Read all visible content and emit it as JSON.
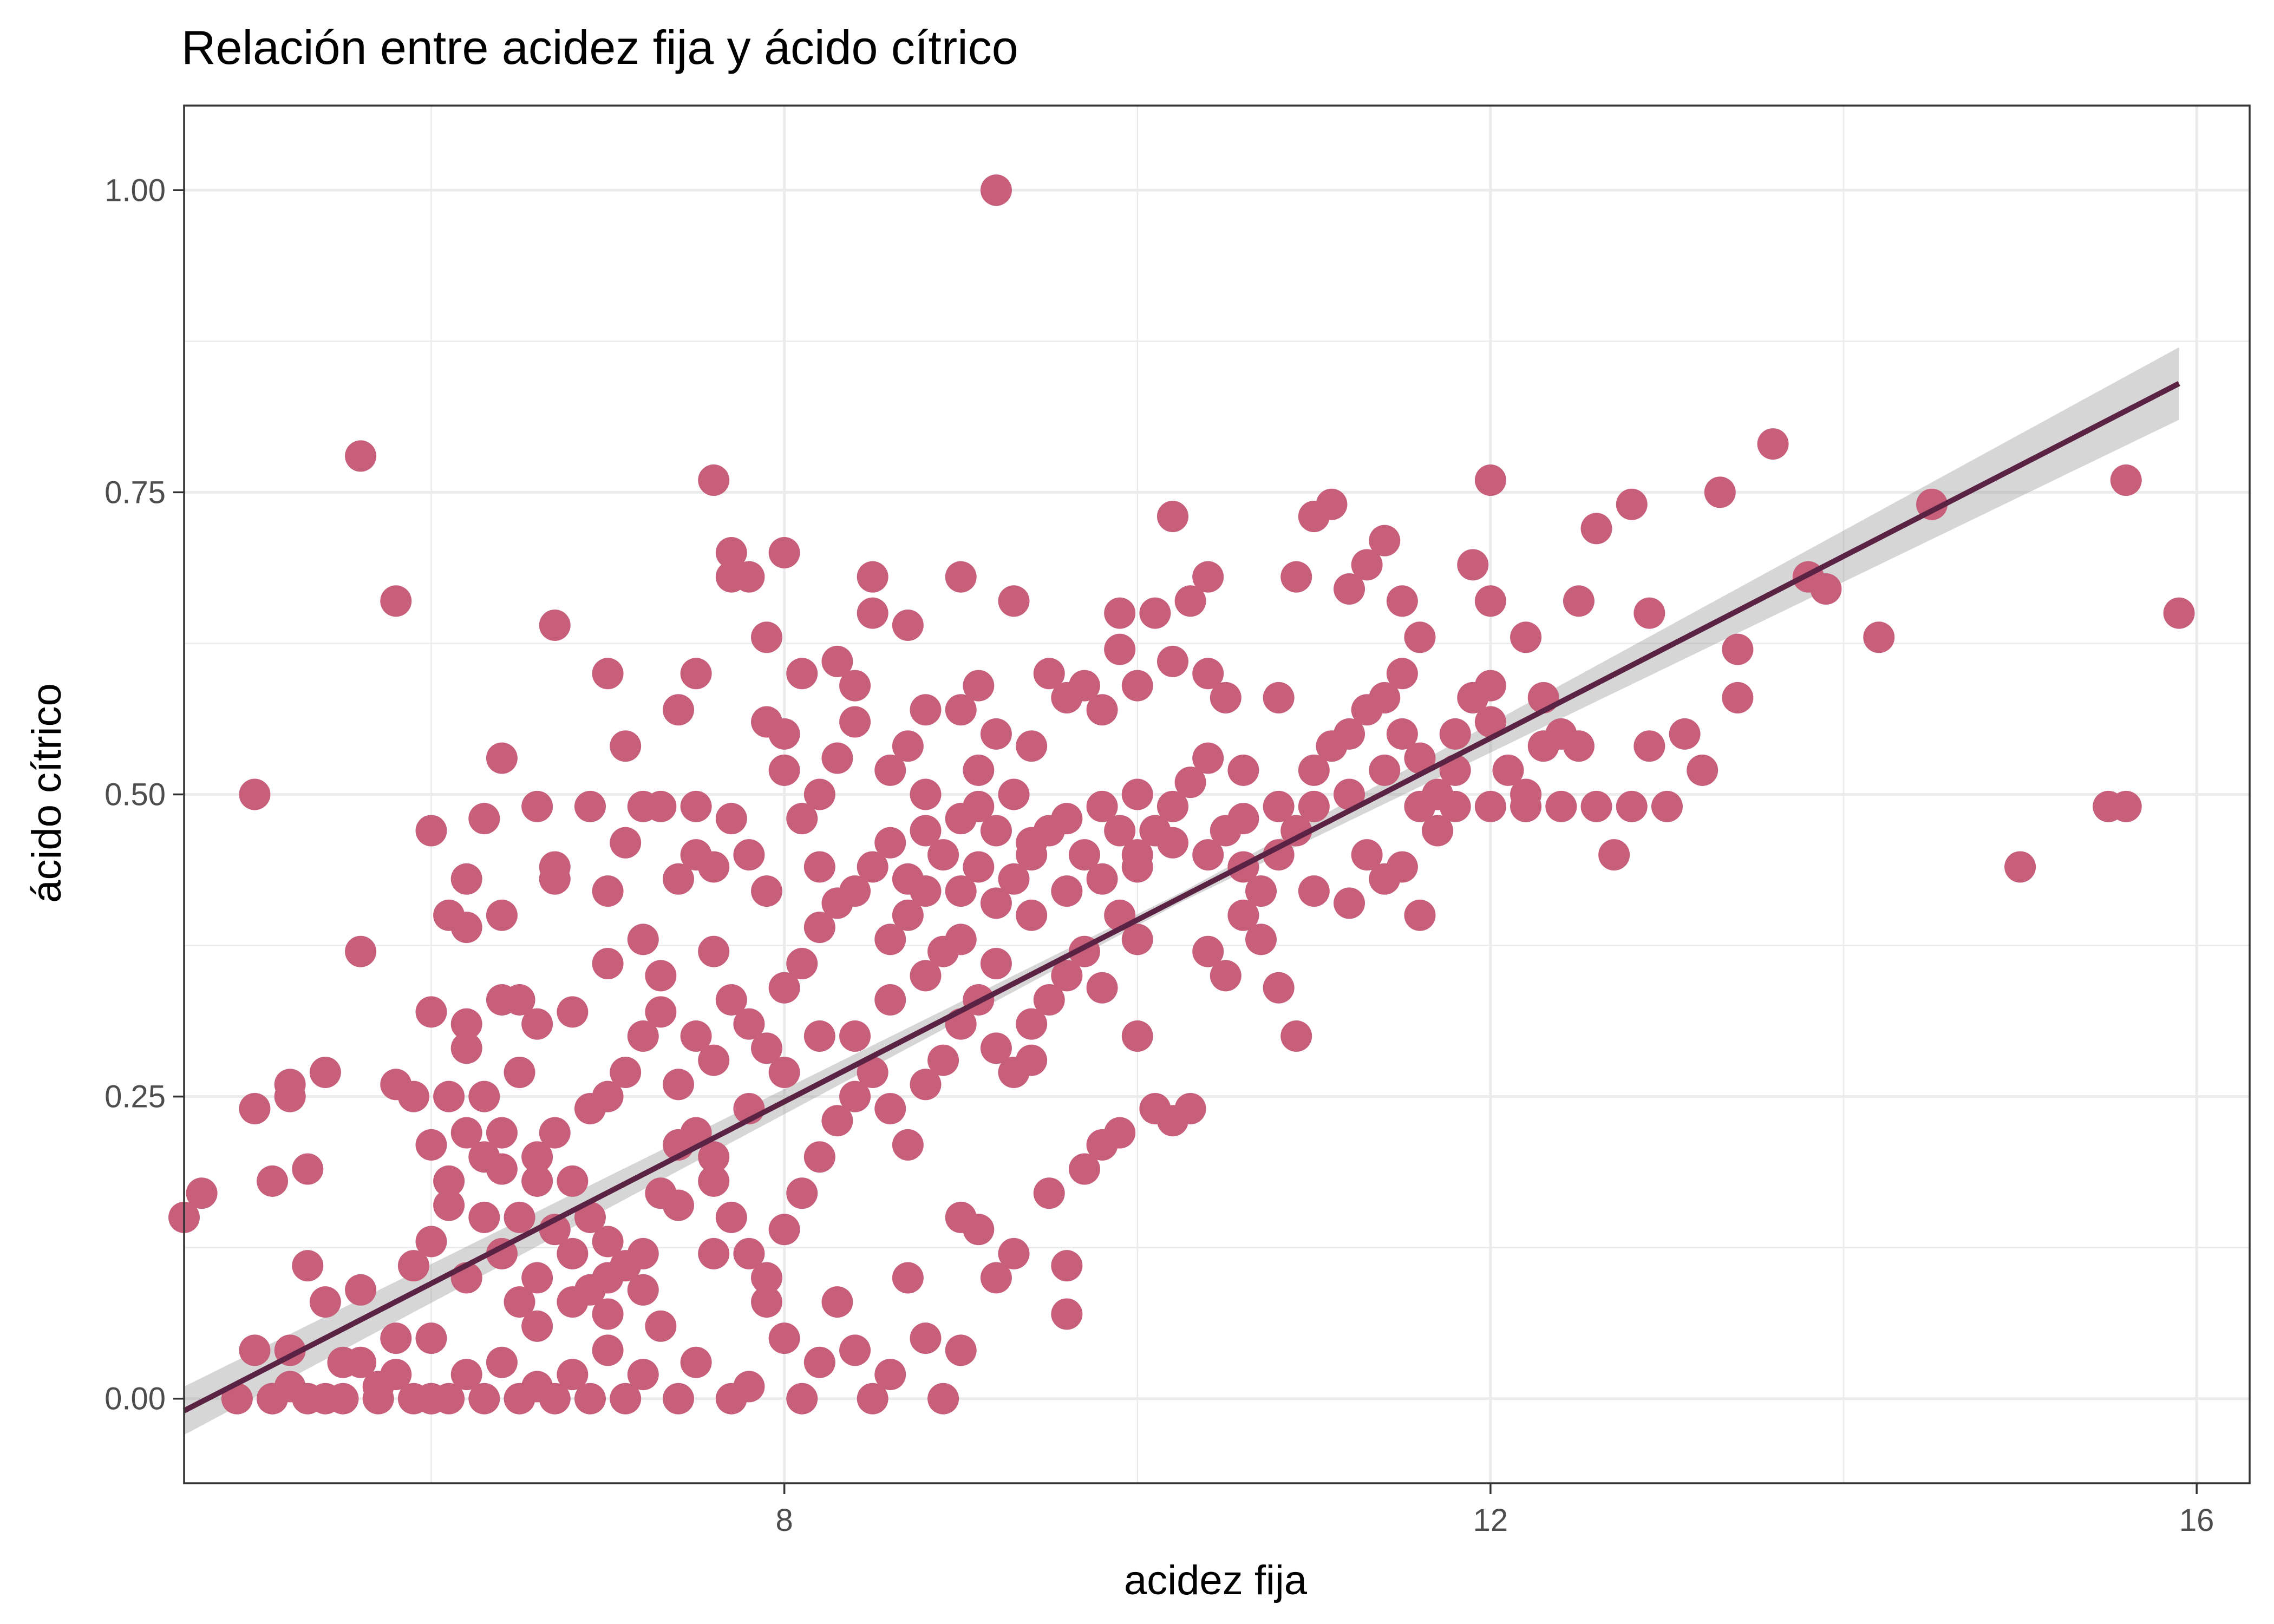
{
  "chart_data": {
    "type": "scatter",
    "title": "Relación entre acidez fija y ácido cítrico",
    "xlabel": "acidez fija",
    "ylabel": "ácido cítrico",
    "xlim": [
      4.6,
      16.3
    ],
    "ylim": [
      -0.07,
      1.07
    ],
    "x_ticks": [
      8,
      12,
      16
    ],
    "x_tick_labels": [
      "8",
      "12",
      "16"
    ],
    "y_ticks": [
      0,
      0.25,
      0.5,
      0.75,
      1.0
    ],
    "y_tick_labels": [
      "0.00",
      "0.25",
      "0.50",
      "0.75",
      "1.00"
    ],
    "grid": true,
    "point_color": "#c75e7a",
    "fit_color": "#5a2243",
    "band_color": "#999999",
    "regression": {
      "type": "linear",
      "x_range": [
        4.6,
        15.9
      ],
      "y_range": [
        -0.01,
        0.84
      ],
      "band_half_width": [
        0.02,
        0.004,
        0.03
      ]
    },
    "points": [
      [
        4.6,
        0.15
      ],
      [
        4.7,
        0.17
      ],
      [
        4.9,
        0
      ],
      [
        5.0,
        0.04
      ],
      [
        5.0,
        0.24
      ],
      [
        5.0,
        0.5
      ],
      [
        5.1,
        0.18
      ],
      [
        5.1,
        0
      ],
      [
        5.2,
        0.04
      ],
      [
        5.2,
        0.25
      ],
      [
        5.2,
        0.26
      ],
      [
        5.3,
        0.19
      ],
      [
        5.3,
        0.11
      ],
      [
        5.4,
        0.27
      ],
      [
        5.4,
        0.08
      ],
      [
        5.4,
        0
      ],
      [
        5.5,
        0.03
      ],
      [
        5.6,
        0.09
      ],
      [
        5.6,
        0.37
      ],
      [
        5.6,
        0.78
      ],
      [
        5.7,
        0
      ],
      [
        5.8,
        0.26
      ],
      [
        5.8,
        0.66
      ],
      [
        5.8,
        0.02
      ],
      [
        5.9,
        0.11
      ],
      [
        5.9,
        0.25
      ],
      [
        6.0,
        0.47
      ],
      [
        6.0,
        0.32
      ],
      [
        6.0,
        0.21
      ],
      [
        6.0,
        0.13
      ],
      [
        6.0,
        0
      ],
      [
        6.1,
        0.4
      ],
      [
        6.1,
        0.25
      ],
      [
        6.1,
        0.16
      ],
      [
        6.2,
        0.43
      ],
      [
        6.2,
        0.39
      ],
      [
        6.2,
        0.31
      ],
      [
        6.2,
        0.29
      ],
      [
        6.3,
        0.48
      ],
      [
        6.3,
        0.2
      ],
      [
        6.3,
        0.15
      ],
      [
        6.4,
        0.53
      ],
      [
        6.4,
        0.4
      ],
      [
        6.4,
        0.33
      ],
      [
        6.4,
        0.22
      ],
      [
        6.5,
        0.33
      ],
      [
        6.5,
        0.27
      ],
      [
        6.6,
        0.31
      ],
      [
        6.6,
        0.49
      ],
      [
        6.6,
        0.18
      ],
      [
        6.7,
        0.64
      ],
      [
        6.7,
        0.44
      ],
      [
        6.7,
        0.43
      ],
      [
        6.8,
        0.32
      ],
      [
        6.9,
        0.24
      ],
      [
        6.9,
        0.49
      ],
      [
        7.0,
        0.6
      ],
      [
        7.0,
        0.42
      ],
      [
        7.0,
        0.36
      ],
      [
        7.1,
        0.54
      ],
      [
        7.1,
        0.46
      ],
      [
        7.2,
        0.49
      ],
      [
        7.2,
        0.38
      ],
      [
        7.3,
        0.49
      ],
      [
        7.3,
        0.35
      ],
      [
        7.4,
        0.57
      ],
      [
        7.4,
        0.43
      ],
      [
        7.5,
        0.6
      ],
      [
        7.5,
        0.49
      ],
      [
        7.5,
        0.45
      ],
      [
        7.6,
        0.76
      ],
      [
        7.6,
        0.44
      ],
      [
        7.6,
        0.37
      ],
      [
        7.7,
        0.68
      ],
      [
        7.7,
        0.7
      ],
      [
        7.7,
        0.48
      ],
      [
        7.8,
        0.68
      ],
      [
        7.8,
        0.45
      ],
      [
        7.9,
        0.56
      ],
      [
        7.9,
        0.63
      ],
      [
        7.9,
        0.42
      ],
      [
        8.0,
        0.7
      ],
      [
        8.0,
        0.55
      ],
      [
        8.0,
        0.52
      ],
      [
        8.1,
        0.6
      ],
      [
        8.1,
        0.48
      ],
      [
        8.2,
        0.5
      ],
      [
        8.2,
        0.44
      ],
      [
        8.3,
        0.61
      ],
      [
        8.3,
        0.53
      ],
      [
        8.4,
        0.59
      ],
      [
        8.4,
        0.56
      ],
      [
        8.5,
        0.68
      ],
      [
        8.5,
        0.65
      ],
      [
        8.6,
        0.52
      ],
      [
        8.7,
        0.64
      ],
      [
        8.7,
        0.54
      ],
      [
        8.8,
        0.57
      ],
      [
        8.8,
        0.5
      ],
      [
        9.0,
        0.68
      ],
      [
        9.0,
        0.57
      ],
      [
        9.1,
        0.59
      ],
      [
        9.1,
        0.52
      ],
      [
        9.2,
        1.0
      ],
      [
        9.2,
        0.55
      ],
      [
        9.3,
        0.66
      ],
      [
        9.4,
        0.54
      ],
      [
        9.5,
        0.6
      ],
      [
        9.6,
        0.58
      ],
      [
        9.7,
        0.59
      ],
      [
        9.8,
        0.57
      ],
      [
        9.9,
        0.62
      ],
      [
        9.9,
        0.65
      ],
      [
        10.0,
        0.59
      ],
      [
        10.0,
        0.5
      ],
      [
        10.1,
        0.65
      ],
      [
        10.2,
        0.73
      ],
      [
        10.2,
        0.61
      ],
      [
        10.3,
        0.66
      ],
      [
        10.4,
        0.68
      ],
      [
        10.4,
        0.6
      ],
      [
        10.5,
        0.58
      ],
      [
        10.6,
        0.52
      ],
      [
        10.8,
        0.58
      ],
      [
        10.9,
        0.68
      ],
      [
        11.0,
        0.73
      ],
      [
        11.1,
        0.74
      ],
      [
        11.2,
        0.67
      ],
      [
        11.3,
        0.69
      ],
      [
        11.4,
        0.71
      ],
      [
        11.5,
        0.66
      ],
      [
        11.5,
        0.6
      ],
      [
        11.6,
        0.63
      ],
      [
        11.8,
        0.55
      ],
      [
        11.9,
        0.69
      ],
      [
        12.0,
        0.76
      ],
      [
        12.0,
        0.66
      ],
      [
        12.0,
        0.59
      ],
      [
        12.2,
        0.63
      ],
      [
        12.3,
        0.58
      ],
      [
        12.5,
        0.66
      ],
      [
        12.6,
        0.72
      ],
      [
        12.8,
        0.74
      ],
      [
        12.9,
        0.65
      ],
      [
        13.1,
        0.55
      ],
      [
        13.2,
        0.52
      ],
      [
        13.3,
        0.75
      ],
      [
        13.4,
        0.58
      ],
      [
        13.4,
        0.62
      ],
      [
        13.6,
        0.79
      ],
      [
        13.8,
        0.68
      ],
      [
        13.9,
        0.67
      ],
      [
        14.2,
        0.63
      ],
      [
        14.5,
        0.74
      ],
      [
        15.0,
        0.44
      ],
      [
        15.5,
        0.49
      ],
      [
        15.6,
        0.49
      ],
      [
        15.6,
        0.76
      ],
      [
        15.9,
        0.65
      ],
      [
        6.0,
        0.05
      ],
      [
        6.2,
        0.1
      ],
      [
        6.4,
        0.12
      ],
      [
        6.6,
        0.06
      ],
      [
        6.8,
        0.08
      ],
      [
        7.0,
        0.1
      ],
      [
        7.2,
        0.12
      ],
      [
        7.4,
        0.16
      ],
      [
        7.6,
        0.2
      ],
      [
        7.8,
        0.24
      ],
      [
        8.0,
        0.27
      ],
      [
        8.2,
        0.3
      ],
      [
        8.4,
        0.3
      ],
      [
        8.6,
        0.33
      ],
      [
        8.8,
        0.35
      ],
      [
        9.0,
        0.38
      ],
      [
        9.2,
        0.36
      ],
      [
        9.4,
        0.4
      ],
      [
        9.6,
        0.42
      ],
      [
        9.8,
        0.43
      ],
      [
        10.0,
        0.44
      ],
      [
        10.2,
        0.46
      ],
      [
        10.4,
        0.45
      ],
      [
        10.6,
        0.48
      ],
      [
        10.8,
        0.49
      ],
      [
        11.0,
        0.49
      ],
      [
        11.2,
        0.5
      ],
      [
        11.4,
        0.52
      ],
      [
        11.6,
        0.49
      ],
      [
        11.8,
        0.49
      ],
      [
        12.0,
        0.49
      ],
      [
        12.2,
        0.49
      ],
      [
        12.4,
        0.49
      ],
      [
        12.6,
        0.49
      ],
      [
        12.8,
        0.49
      ],
      [
        13.0,
        0.49
      ],
      [
        12.7,
        0.45
      ],
      [
        12.9,
        0.54
      ],
      [
        11.5,
        0.44
      ],
      [
        11.6,
        0.4
      ],
      [
        11.7,
        0.47
      ],
      [
        11.3,
        0.45
      ],
      [
        11.4,
        0.43
      ],
      [
        11.2,
        0.41
      ],
      [
        11.0,
        0.42
      ],
      [
        10.9,
        0.3
      ],
      [
        10.8,
        0.34
      ],
      [
        10.7,
        0.38
      ],
      [
        10.6,
        0.4
      ],
      [
        10.5,
        0.35
      ],
      [
        10.4,
        0.37
      ],
      [
        10.3,
        0.24
      ],
      [
        10.2,
        0.23
      ],
      [
        10.1,
        0.24
      ],
      [
        10.0,
        0.38
      ],
      [
        10.0,
        0.3
      ],
      [
        9.9,
        0.22
      ],
      [
        9.8,
        0.21
      ],
      [
        9.7,
        0.19
      ],
      [
        9.6,
        0.07
      ],
      [
        9.6,
        0.11
      ],
      [
        9.5,
        0.17
      ],
      [
        9.4,
        0.28
      ],
      [
        9.3,
        0.12
      ],
      [
        9.2,
        0.1
      ],
      [
        9.1,
        0.14
      ],
      [
        9.0,
        0.04
      ],
      [
        9.0,
        0.15
      ],
      [
        8.9,
        0.0
      ],
      [
        8.8,
        0.05
      ],
      [
        8.7,
        0.1
      ],
      [
        8.6,
        0.02
      ],
      [
        8.5,
        0.0
      ],
      [
        8.4,
        0.04
      ],
      [
        8.3,
        0.08
      ],
      [
        8.2,
        0.03
      ],
      [
        8.1,
        0.0
      ],
      [
        8.0,
        0.05
      ],
      [
        7.9,
        0.08
      ],
      [
        7.8,
        0.01
      ],
      [
        7.7,
        0.0
      ],
      [
        7.6,
        0.12
      ],
      [
        7.5,
        0.03
      ],
      [
        7.4,
        0.0
      ],
      [
        7.3,
        0.06
      ],
      [
        7.2,
        0.02
      ],
      [
        7.1,
        0.0
      ],
      [
        7.0,
        0.04
      ],
      [
        6.9,
        0.0
      ],
      [
        6.8,
        0.02
      ],
      [
        6.7,
        0.0
      ],
      [
        6.6,
        0.01
      ],
      [
        6.5,
        0.0
      ],
      [
        6.4,
        0.03
      ],
      [
        6.3,
        0.0
      ],
      [
        6.2,
        0.02
      ],
      [
        6.1,
        0.0
      ],
      [
        6.0,
        0.0
      ],
      [
        5.9,
        0.0
      ],
      [
        5.8,
        0.05
      ],
      [
        5.7,
        0.01
      ],
      [
        5.6,
        0.03
      ],
      [
        5.5,
        0.0
      ],
      [
        5.3,
        0.0
      ],
      [
        5.2,
        0.01
      ],
      [
        5.1,
        0.0
      ],
      [
        7.5,
        0.3
      ],
      [
        7.6,
        0.28
      ],
      [
        7.7,
        0.33
      ],
      [
        7.8,
        0.31
      ],
      [
        7.9,
        0.29
      ],
      [
        8.0,
        0.34
      ],
      [
        8.1,
        0.36
      ],
      [
        8.2,
        0.39
      ],
      [
        8.3,
        0.41
      ],
      [
        8.4,
        0.42
      ],
      [
        8.5,
        0.44
      ],
      [
        8.6,
        0.46
      ],
      [
        8.7,
        0.43
      ],
      [
        8.8,
        0.47
      ],
      [
        8.9,
        0.45
      ],
      [
        9.0,
        0.48
      ],
      [
        9.1,
        0.49
      ],
      [
        9.2,
        0.47
      ],
      [
        9.3,
        0.5
      ],
      [
        9.4,
        0.46
      ],
      [
        7.0,
        0.25
      ],
      [
        7.1,
        0.27
      ],
      [
        7.2,
        0.3
      ],
      [
        7.3,
        0.32
      ],
      [
        7.4,
        0.26
      ],
      [
        7.5,
        0.22
      ],
      [
        7.6,
        0.18
      ],
      [
        7.7,
        0.15
      ],
      [
        7.8,
        0.12
      ],
      [
        7.9,
        0.1
      ],
      [
        8.0,
        0.14
      ],
      [
        8.1,
        0.17
      ],
      [
        8.2,
        0.2
      ],
      [
        8.3,
        0.23
      ],
      [
        8.4,
        0.25
      ],
      [
        8.5,
        0.27
      ],
      [
        8.6,
        0.24
      ],
      [
        8.7,
        0.21
      ],
      [
        8.8,
        0.26
      ],
      [
        8.9,
        0.28
      ],
      [
        9.0,
        0.31
      ],
      [
        9.1,
        0.33
      ],
      [
        9.2,
        0.29
      ],
      [
        9.3,
        0.27
      ],
      [
        9.4,
        0.31
      ],
      [
        9.5,
        0.33
      ],
      [
        9.6,
        0.35
      ],
      [
        9.7,
        0.37
      ],
      [
        9.8,
        0.34
      ],
      [
        9.9,
        0.4
      ],
      [
        6.5,
        0.15
      ],
      [
        6.6,
        0.2
      ],
      [
        6.7,
        0.22
      ],
      [
        6.8,
        0.18
      ],
      [
        6.9,
        0.15
      ],
      [
        7.0,
        0.13
      ],
      [
        7.1,
        0.11
      ],
      [
        7.2,
        0.09
      ],
      [
        7.3,
        0.17
      ],
      [
        7.4,
        0.21
      ],
      [
        6.1,
        0.18
      ],
      [
        6.2,
        0.22
      ],
      [
        6.3,
        0.25
      ],
      [
        6.4,
        0.19
      ],
      [
        6.5,
        0.08
      ],
      [
        6.6,
        0.1
      ],
      [
        6.7,
        0.14
      ],
      [
        6.8,
        0.12
      ],
      [
        6.9,
        0.09
      ],
      [
        7.0,
        0.07
      ],
      [
        8.6,
        0.38
      ],
      [
        8.7,
        0.4
      ],
      [
        8.8,
        0.42
      ],
      [
        8.9,
        0.37
      ],
      [
        9.0,
        0.42
      ],
      [
        9.1,
        0.44
      ],
      [
        9.2,
        0.41
      ],
      [
        9.3,
        0.43
      ],
      [
        9.4,
        0.45
      ],
      [
        9.5,
        0.47
      ],
      [
        9.6,
        0.48
      ],
      [
        9.7,
        0.45
      ],
      [
        9.8,
        0.49
      ],
      [
        9.9,
        0.47
      ],
      [
        10.0,
        0.45
      ],
      [
        10.1,
        0.47
      ],
      [
        10.2,
        0.49
      ],
      [
        10.3,
        0.51
      ],
      [
        10.4,
        0.53
      ],
      [
        10.5,
        0.47
      ],
      [
        10.6,
        0.44
      ],
      [
        10.7,
        0.42
      ],
      [
        10.8,
        0.45
      ],
      [
        10.9,
        0.47
      ],
      [
        11.0,
        0.52
      ],
      [
        11.1,
        0.54
      ],
      [
        11.2,
        0.55
      ],
      [
        11.3,
        0.57
      ],
      [
        11.4,
        0.58
      ],
      [
        11.5,
        0.55
      ],
      [
        11.6,
        0.53
      ],
      [
        11.7,
        0.5
      ],
      [
        11.8,
        0.52
      ],
      [
        11.9,
        0.58
      ],
      [
        12.0,
        0.56
      ],
      [
        12.1,
        0.52
      ],
      [
        12.2,
        0.5
      ],
      [
        12.3,
        0.54
      ],
      [
        12.4,
        0.55
      ],
      [
        12.5,
        0.54
      ]
    ]
  }
}
